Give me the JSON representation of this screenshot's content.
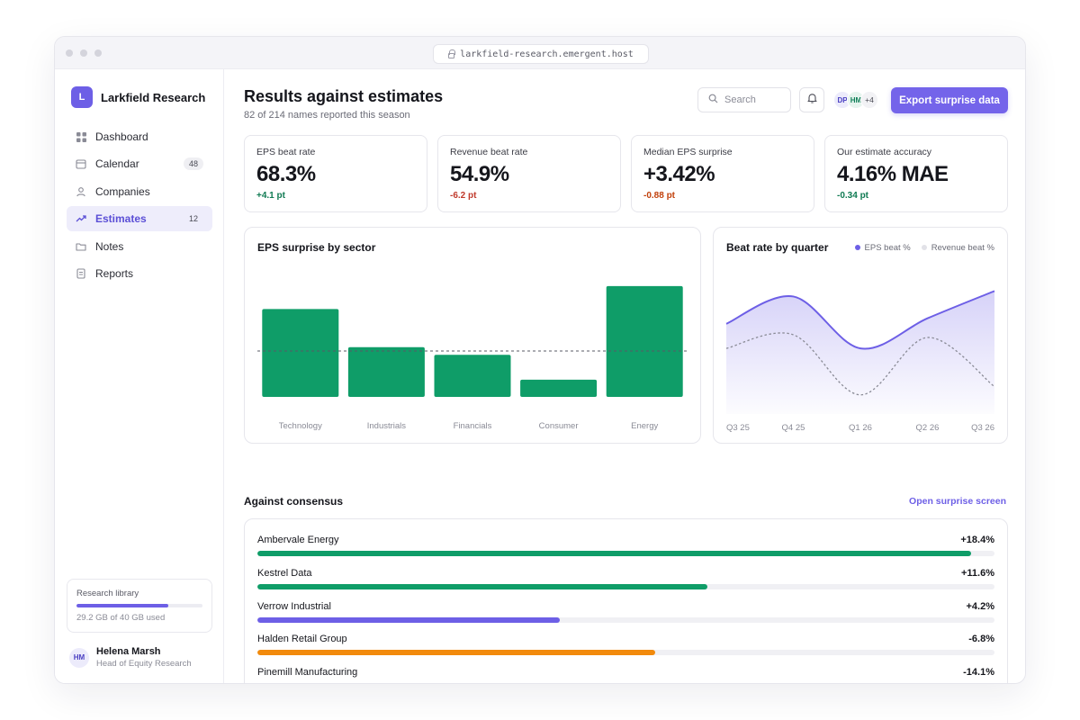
{
  "browser": {
    "url": "larkfield-research.emergent.host"
  },
  "brand": {
    "initial": "L",
    "name": "Larkfield Research",
    "accent": "#6d5fe6"
  },
  "sidebar": {
    "items": [
      {
        "label": "Dashboard",
        "icon": "dashboard-icon",
        "badge": ""
      },
      {
        "label": "Calendar",
        "icon": "calendar-icon",
        "badge": "48"
      },
      {
        "label": "Companies",
        "icon": "person-icon",
        "badge": ""
      },
      {
        "label": "Estimates",
        "icon": "trend-icon",
        "badge": "12",
        "active": true
      },
      {
        "label": "Notes",
        "icon": "folder-icon",
        "badge": ""
      },
      {
        "label": "Reports",
        "icon": "document-icon",
        "badge": ""
      }
    ],
    "library": {
      "title": "Research library",
      "used_text": "29.2 GB of 40 GB used",
      "fraction": 0.73
    },
    "user": {
      "initials": "HM",
      "name": "Helena Marsh",
      "role": "Head of Equity Research"
    }
  },
  "header": {
    "title": "Results against estimates",
    "subtitle": "82 of 214 names reported this season",
    "search_placeholder": "Search",
    "avatars": [
      "DP",
      "HM",
      "+4"
    ],
    "export_label": "Export surprise data"
  },
  "kpis": [
    {
      "label": "EPS beat rate",
      "value": "68.3%",
      "delta": "+4.1 pt",
      "tone": "pos"
    },
    {
      "label": "Revenue beat rate",
      "value": "54.9%",
      "delta": "-6.2 pt",
      "tone": "neg"
    },
    {
      "label": "Median EPS surprise",
      "value": "+3.42%",
      "delta": "-0.88 pt",
      "tone": "negwarm"
    },
    {
      "label": "Our estimate accuracy",
      "value": "4.16% MAE",
      "delta": "-0.34 pt",
      "tone": "pos"
    }
  ],
  "chart_data": [
    {
      "type": "bar",
      "title": "EPS surprise by sector",
      "categories": [
        "Technology",
        "Industrials",
        "Financials",
        "Consumer",
        "Energy"
      ],
      "values": [
        4.6,
        2.6,
        2.2,
        0.9,
        5.8
      ],
      "reference_line": 2.4,
      "ylim": [
        0,
        6.5
      ],
      "color": "#0f9d68"
    },
    {
      "type": "line",
      "title": "Beat rate by quarter",
      "x": [
        "Q3 25",
        "Q4 25",
        "Q1 26",
        "Q2 26",
        "Q3 26"
      ],
      "series": [
        {
          "name": "EPS beat %",
          "values": [
            68,
            78,
            59,
            70,
            80
          ],
          "color": "#6d5fe6"
        },
        {
          "name": "Revenue beat %",
          "values": [
            59,
            64,
            42,
            63,
            45
          ],
          "color": "#8a8b96"
        }
      ],
      "ylim": [
        35,
        90
      ],
      "legend": "top-right",
      "grid": false
    }
  ],
  "consensus": {
    "title": "Against consensus",
    "link": "Open surprise screen",
    "scale_max": 19.0,
    "rows": [
      {
        "name": "Ambervale Energy",
        "value": "+18.4%",
        "num": 18.4,
        "color": "#0f9d68"
      },
      {
        "name": "Kestrel Data",
        "value": "+11.6%",
        "num": 11.6,
        "color": "#0f9d68"
      },
      {
        "name": "Verrow Industrial",
        "value": "+4.2%",
        "num": 4.2,
        "color": "#6d5fe6",
        "fraction": 0.41
      },
      {
        "name": "Halden Retail Group",
        "value": "-6.8%",
        "num": -6.8,
        "color": "#f28a0c",
        "fraction": 0.54
      },
      {
        "name": "Pinemill Manufacturing",
        "value": "-14.1%",
        "num": -14.1,
        "color": "#ef5b3c",
        "fraction": 0.81
      }
    ]
  }
}
